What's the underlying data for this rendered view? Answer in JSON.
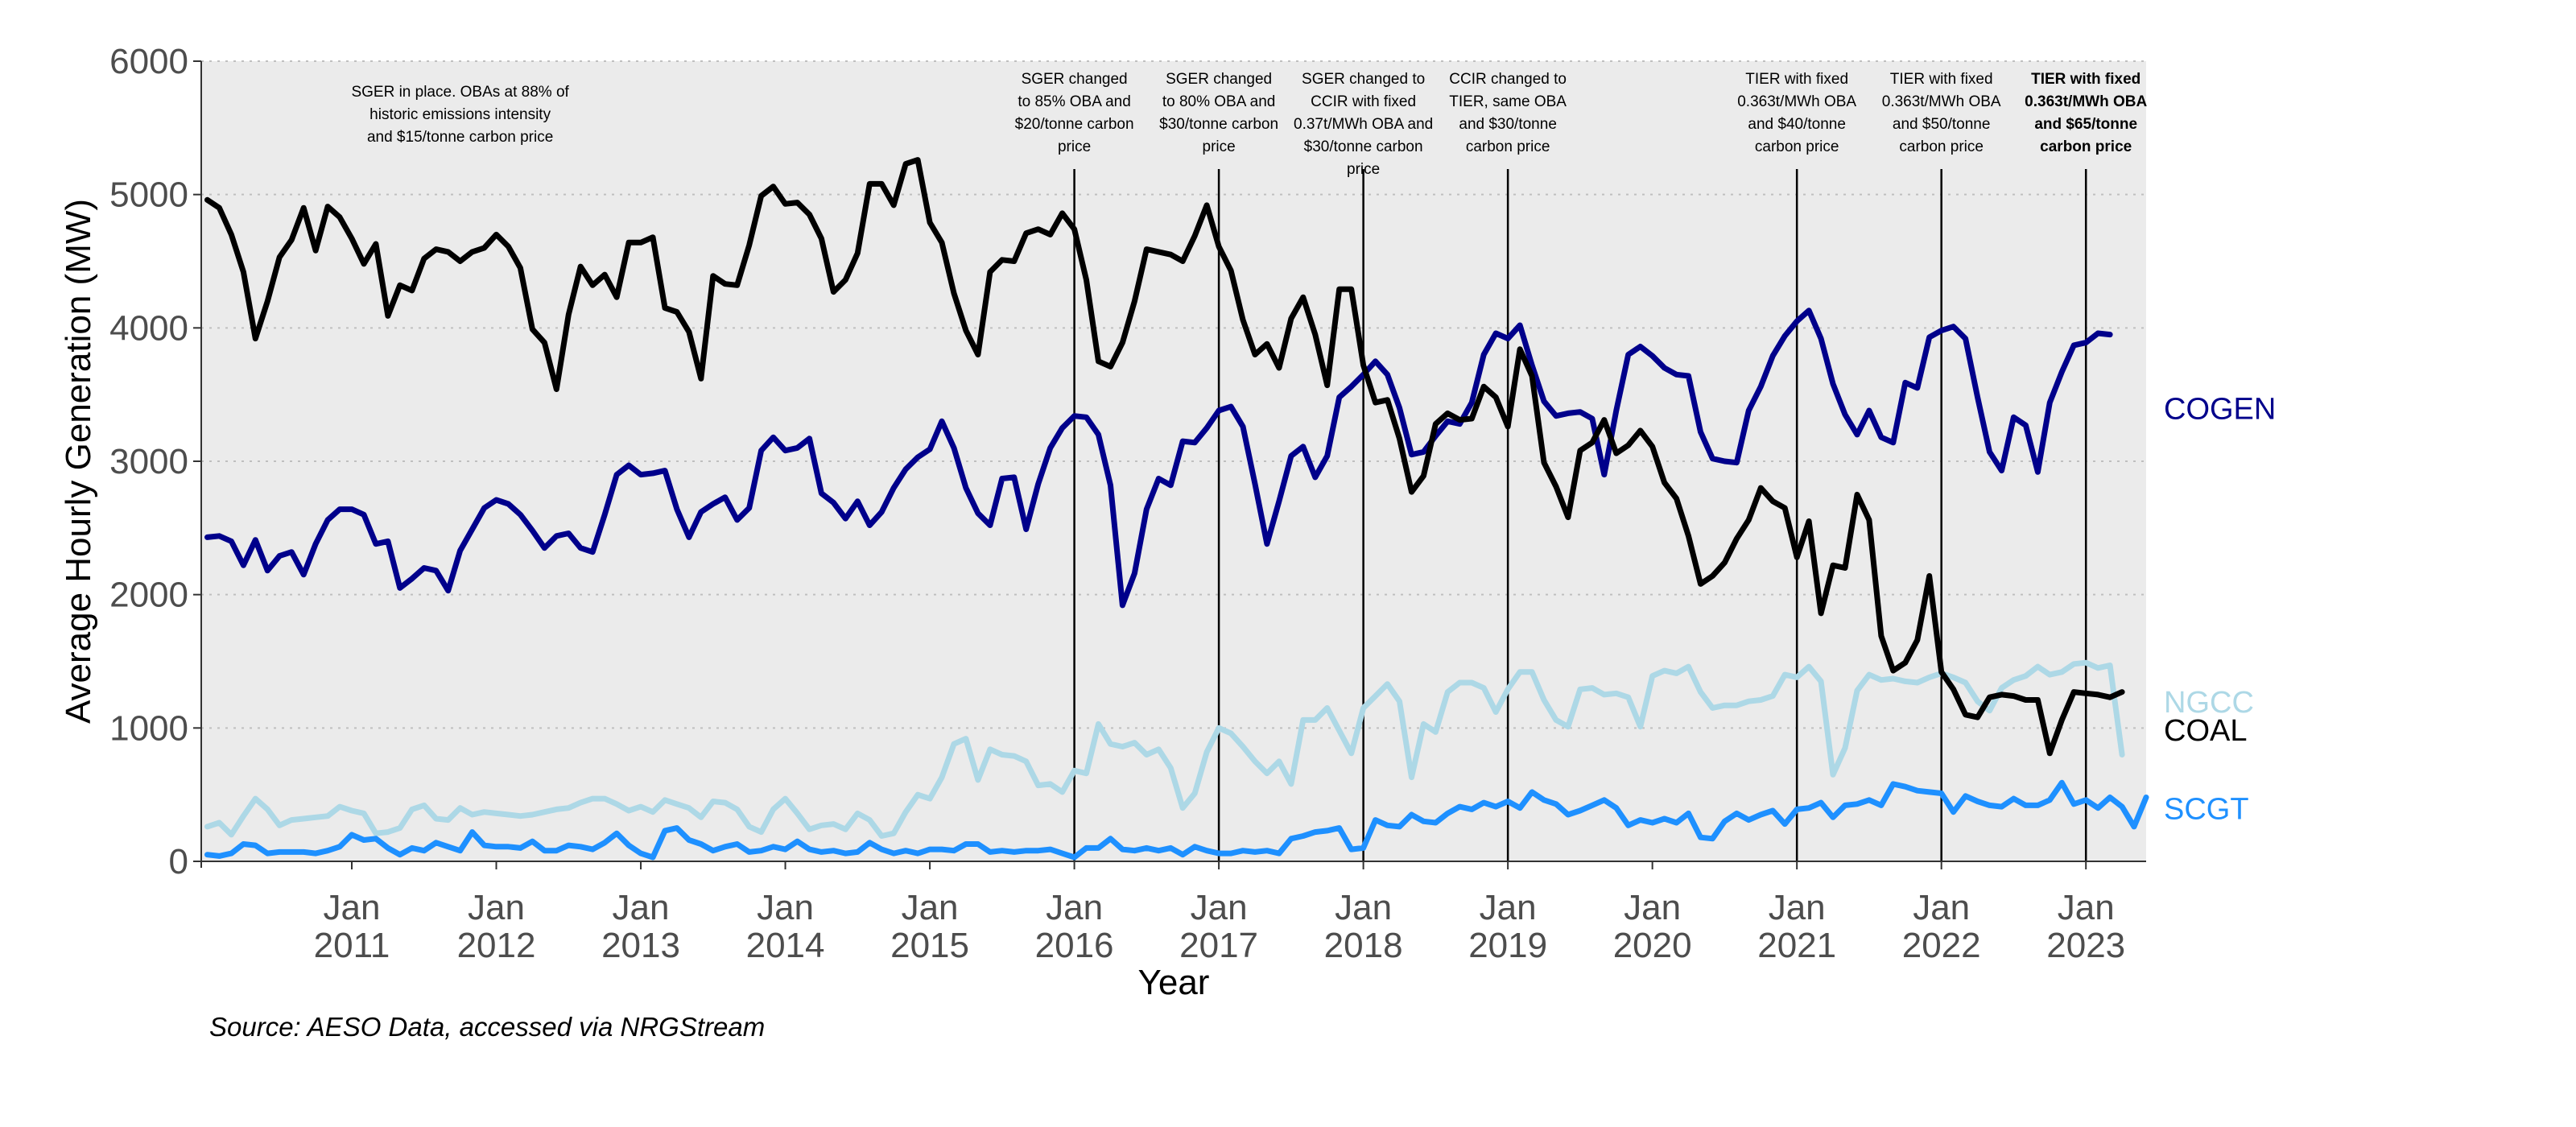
{
  "chart_data": {
    "type": "line",
    "ylabel": "Average Hourly Generation (MW)",
    "xlabel": "Year",
    "caption": "Source: AESO Data, accessed via NRGStream",
    "ylim": [
      0,
      6000
    ],
    "yticks": [
      0,
      1000,
      2000,
      3000,
      4000,
      5000,
      6000
    ],
    "ytick_labels": [
      "0",
      "1000",
      "2000",
      "3000",
      "4000",
      "5000",
      "6000"
    ],
    "xlim": [
      "2010-01",
      "2023-06"
    ],
    "xticks": [
      {
        "date": "2011-01",
        "line1": "Jan",
        "line2": "2011"
      },
      {
        "date": "2012-01",
        "line1": "Jan",
        "line2": "2012"
      },
      {
        "date": "2013-01",
        "line1": "Jan",
        "line2": "2013"
      },
      {
        "date": "2014-01",
        "line1": "Jan",
        "line2": "2014"
      },
      {
        "date": "2015-01",
        "line1": "Jan",
        "line2": "2015"
      },
      {
        "date": "2016-01",
        "line1": "Jan",
        "line2": "2016"
      },
      {
        "date": "2017-01",
        "line1": "Jan",
        "line2": "2017"
      },
      {
        "date": "2018-01",
        "line1": "Jan",
        "line2": "2018"
      },
      {
        "date": "2019-01",
        "line1": "Jan",
        "line2": "2019"
      },
      {
        "date": "2020-01",
        "line1": "Jan",
        "line2": "2020"
      },
      {
        "date": "2021-01",
        "line1": "Jan",
        "line2": "2021"
      },
      {
        "date": "2022-01",
        "line1": "Jan",
        "line2": "2022"
      },
      {
        "date": "2023-01",
        "line1": "Jan",
        "line2": "2023"
      }
    ],
    "grid": "horizontal dotted",
    "background": "#ebebeb",
    "annotations": [
      {
        "date": null,
        "anchor_date": "2011-10",
        "lines": [
          "SGER in place. OBAs at 88% of",
          "historic emissions intensity",
          "and $15/tonne carbon price"
        ],
        "bold": false
      },
      {
        "date": "2016-01",
        "lines": [
          "SGER changed",
          "to 85% OBA and",
          "$20/tonne carbon",
          "price"
        ],
        "bold": false
      },
      {
        "date": "2017-01",
        "lines": [
          "SGER changed",
          "to 80% OBA and",
          "$30/tonne carbon",
          "price"
        ],
        "bold": false
      },
      {
        "date": "2018-01",
        "lines": [
          "SGER changed to",
          "CCIR with fixed",
          "0.37t/MWh OBA and",
          "$30/tonne carbon",
          "price"
        ],
        "bold": false
      },
      {
        "date": "2019-01",
        "lines": [
          "CCIR changed to",
          "TIER, same OBA",
          "and $30/tonne",
          "carbon price"
        ],
        "bold": false
      },
      {
        "date": "2021-01",
        "lines": [
          "TIER with fixed",
          "0.363t/MWh OBA",
          "and $40/tonne",
          "carbon price"
        ],
        "bold": false
      },
      {
        "date": "2022-01",
        "lines": [
          "TIER with fixed",
          "0.363t/MWh OBA",
          "and $50/tonne",
          "carbon price"
        ],
        "bold": false
      },
      {
        "date": "2023-01",
        "lines": [
          "TIER with fixed",
          "0.363t/MWh OBA",
          "and $65/tonne",
          "carbon price"
        ],
        "bold": true
      }
    ],
    "start": "2010-01",
    "step": "month",
    "series": [
      {
        "name": "COGEN",
        "color": "#00008B",
        "label_value": 3400,
        "values": [
          2430,
          2440,
          2400,
          2220,
          2410,
          2180,
          2290,
          2320,
          2150,
          2380,
          2560,
          2640,
          2640,
          2600,
          2380,
          2400,
          2050,
          2120,
          2200,
          2180,
          2030,
          2330,
          2490,
          2650,
          2710,
          2680,
          2600,
          2480,
          2350,
          2440,
          2460,
          2350,
          2320,
          2600,
          2900,
          2970,
          2900,
          2910,
          2930,
          2640,
          2430,
          2620,
          2680,
          2730,
          2560,
          2650,
          3080,
          3180,
          3080,
          3100,
          3170,
          2760,
          2690,
          2570,
          2700,
          2520,
          2620,
          2800,
          2940,
          3030,
          3090,
          3300,
          3100,
          2800,
          2610,
          2520,
          2870,
          2880,
          2490,
          2830,
          3100,
          3250,
          3340,
          3330,
          3200,
          2820,
          1920,
          2160,
          2640,
          2870,
          2820,
          3150,
          3140,
          3250,
          3380,
          3410,
          3260,
          2830,
          2380,
          2700,
          3040,
          3110,
          2880,
          3040,
          3480,
          3560,
          3650,
          3750,
          3650,
          3400,
          3050,
          3070,
          3190,
          3300,
          3280,
          3440,
          3800,
          3960,
          3920,
          4020,
          3720,
          3450,
          3340,
          3360,
          3370,
          3320,
          2900,
          3380,
          3800,
          3860,
          3790,
          3700,
          3650,
          3640,
          3220,
          3020,
          3000,
          2990,
          3380,
          3560,
          3790,
          3940,
          4050,
          4130,
          3920,
          3580,
          3350,
          3200,
          3380,
          3180,
          3140,
          3590,
          3550,
          3930,
          3980,
          4010,
          3920,
          3480,
          3070,
          2930,
          3330,
          3270,
          2920,
          3440,
          3670,
          3870,
          3890,
          3960,
          3950
        ]
      },
      {
        "name": "COAL",
        "color": "#000000",
        "label_value": 1000,
        "values": [
          4960,
          4900,
          4700,
          4420,
          3920,
          4200,
          4530,
          4660,
          4900,
          4580,
          4910,
          4830,
          4670,
          4480,
          4630,
          4090,
          4320,
          4280,
          4520,
          4590,
          4570,
          4500,
          4570,
          4600,
          4700,
          4610,
          4450,
          3990,
          3890,
          3540,
          4100,
          4460,
          4320,
          4400,
          4230,
          4640,
          4640,
          4680,
          4150,
          4120,
          3970,
          3620,
          4390,
          4330,
          4320,
          4620,
          4990,
          5060,
          4930,
          4940,
          4850,
          4670,
          4270,
          4360,
          4560,
          5080,
          5080,
          4920,
          5230,
          5260,
          4790,
          4640,
          4260,
          3980,
          3800,
          4420,
          4510,
          4500,
          4710,
          4740,
          4700,
          4860,
          4740,
          4360,
          3750,
          3710,
          3890,
          4200,
          4590,
          4570,
          4550,
          4500,
          4690,
          4920,
          4610,
          4430,
          4060,
          3800,
          3880,
          3700,
          4070,
          4230,
          3950,
          3570,
          4290,
          4290,
          3720,
          3440,
          3460,
          3170,
          2770,
          2890,
          3280,
          3360,
          3310,
          3320,
          3560,
          3480,
          3260,
          3840,
          3640,
          2990,
          2810,
          2580,
          3080,
          3140,
          3310,
          3060,
          3120,
          3230,
          3110,
          2840,
          2720,
          2440,
          2080,
          2140,
          2240,
          2420,
          2560,
          2800,
          2700,
          2650,
          2280,
          2550,
          1860,
          2220,
          2200,
          2750,
          2560,
          1690,
          1430,
          1490,
          1660,
          2140,
          1420,
          1290,
          1100,
          1080,
          1230,
          1250,
          1240,
          1210,
          1210,
          810,
          1060,
          1270,
          1260,
          1250,
          1230,
          1270
        ]
      },
      {
        "name": "NGCC",
        "color": "#ADD8E6",
        "label_value": 1200,
        "values": [
          260,
          290,
          200,
          340,
          470,
          390,
          270,
          310,
          320,
          330,
          340,
          410,
          380,
          360,
          210,
          220,
          250,
          390,
          420,
          320,
          310,
          400,
          350,
          370,
          360,
          350,
          340,
          350,
          370,
          390,
          400,
          440,
          470,
          470,
          430,
          380,
          410,
          370,
          460,
          430,
          400,
          330,
          450,
          440,
          390,
          260,
          220,
          390,
          470,
          360,
          240,
          270,
          280,
          240,
          360,
          310,
          190,
          210,
          370,
          500,
          470,
          630,
          880,
          920,
          610,
          840,
          800,
          790,
          750,
          570,
          580,
          520,
          680,
          660,
          1030,
          880,
          860,
          890,
          800,
          840,
          700,
          400,
          510,
          820,
          1000,
          960,
          860,
          750,
          660,
          750,
          580,
          1060,
          1060,
          1150,
          980,
          810,
          1150,
          1240,
          1330,
          1200,
          630,
          1030,
          970,
          1270,
          1340,
          1340,
          1300,
          1120,
          1290,
          1420,
          1420,
          1210,
          1060,
          1010,
          1290,
          1300,
          1250,
          1260,
          1230,
          1010,
          1390,
          1430,
          1410,
          1460,
          1270,
          1150,
          1170,
          1170,
          1200,
          1210,
          1240,
          1400,
          1380,
          1460,
          1350,
          650,
          850,
          1280,
          1400,
          1360,
          1370,
          1350,
          1340,
          1380,
          1410,
          1380,
          1340,
          1200,
          1130,
          1300,
          1360,
          1390,
          1460,
          1400,
          1420,
          1480,
          1490,
          1450,
          1470,
          800
        ]
      },
      {
        "name": "SCGT",
        "color": "#1E90FF",
        "label_value": 400,
        "values": [
          50,
          40,
          60,
          130,
          120,
          60,
          70,
          70,
          70,
          60,
          80,
          110,
          200,
          160,
          170,
          100,
          50,
          100,
          80,
          140,
          110,
          80,
          220,
          120,
          110,
          110,
          100,
          150,
          80,
          80,
          120,
          110,
          90,
          140,
          210,
          120,
          60,
          30,
          230,
          250,
          160,
          130,
          80,
          110,
          130,
          70,
          80,
          110,
          90,
          150,
          90,
          70,
          80,
          60,
          70,
          140,
          90,
          60,
          80,
          60,
          90,
          90,
          80,
          130,
          130,
          70,
          80,
          70,
          80,
          80,
          90,
          60,
          30,
          100,
          100,
          170,
          90,
          80,
          100,
          80,
          100,
          50,
          110,
          80,
          60,
          60,
          80,
          70,
          80,
          60,
          170,
          190,
          220,
          230,
          250,
          90,
          100,
          310,
          270,
          260,
          350,
          300,
          290,
          360,
          410,
          390,
          440,
          410,
          450,
          400,
          520,
          460,
          430,
          350,
          380,
          420,
          460,
          400,
          270,
          310,
          290,
          320,
          290,
          360,
          180,
          170,
          300,
          360,
          310,
          350,
          380,
          280,
          390,
          400,
          440,
          330,
          420,
          430,
          460,
          420,
          580,
          560,
          530,
          520,
          510,
          370,
          490,
          450,
          420,
          410,
          470,
          420,
          420,
          460,
          590,
          430,
          460,
          400,
          480,
          410,
          260,
          480
        ]
      }
    ]
  }
}
